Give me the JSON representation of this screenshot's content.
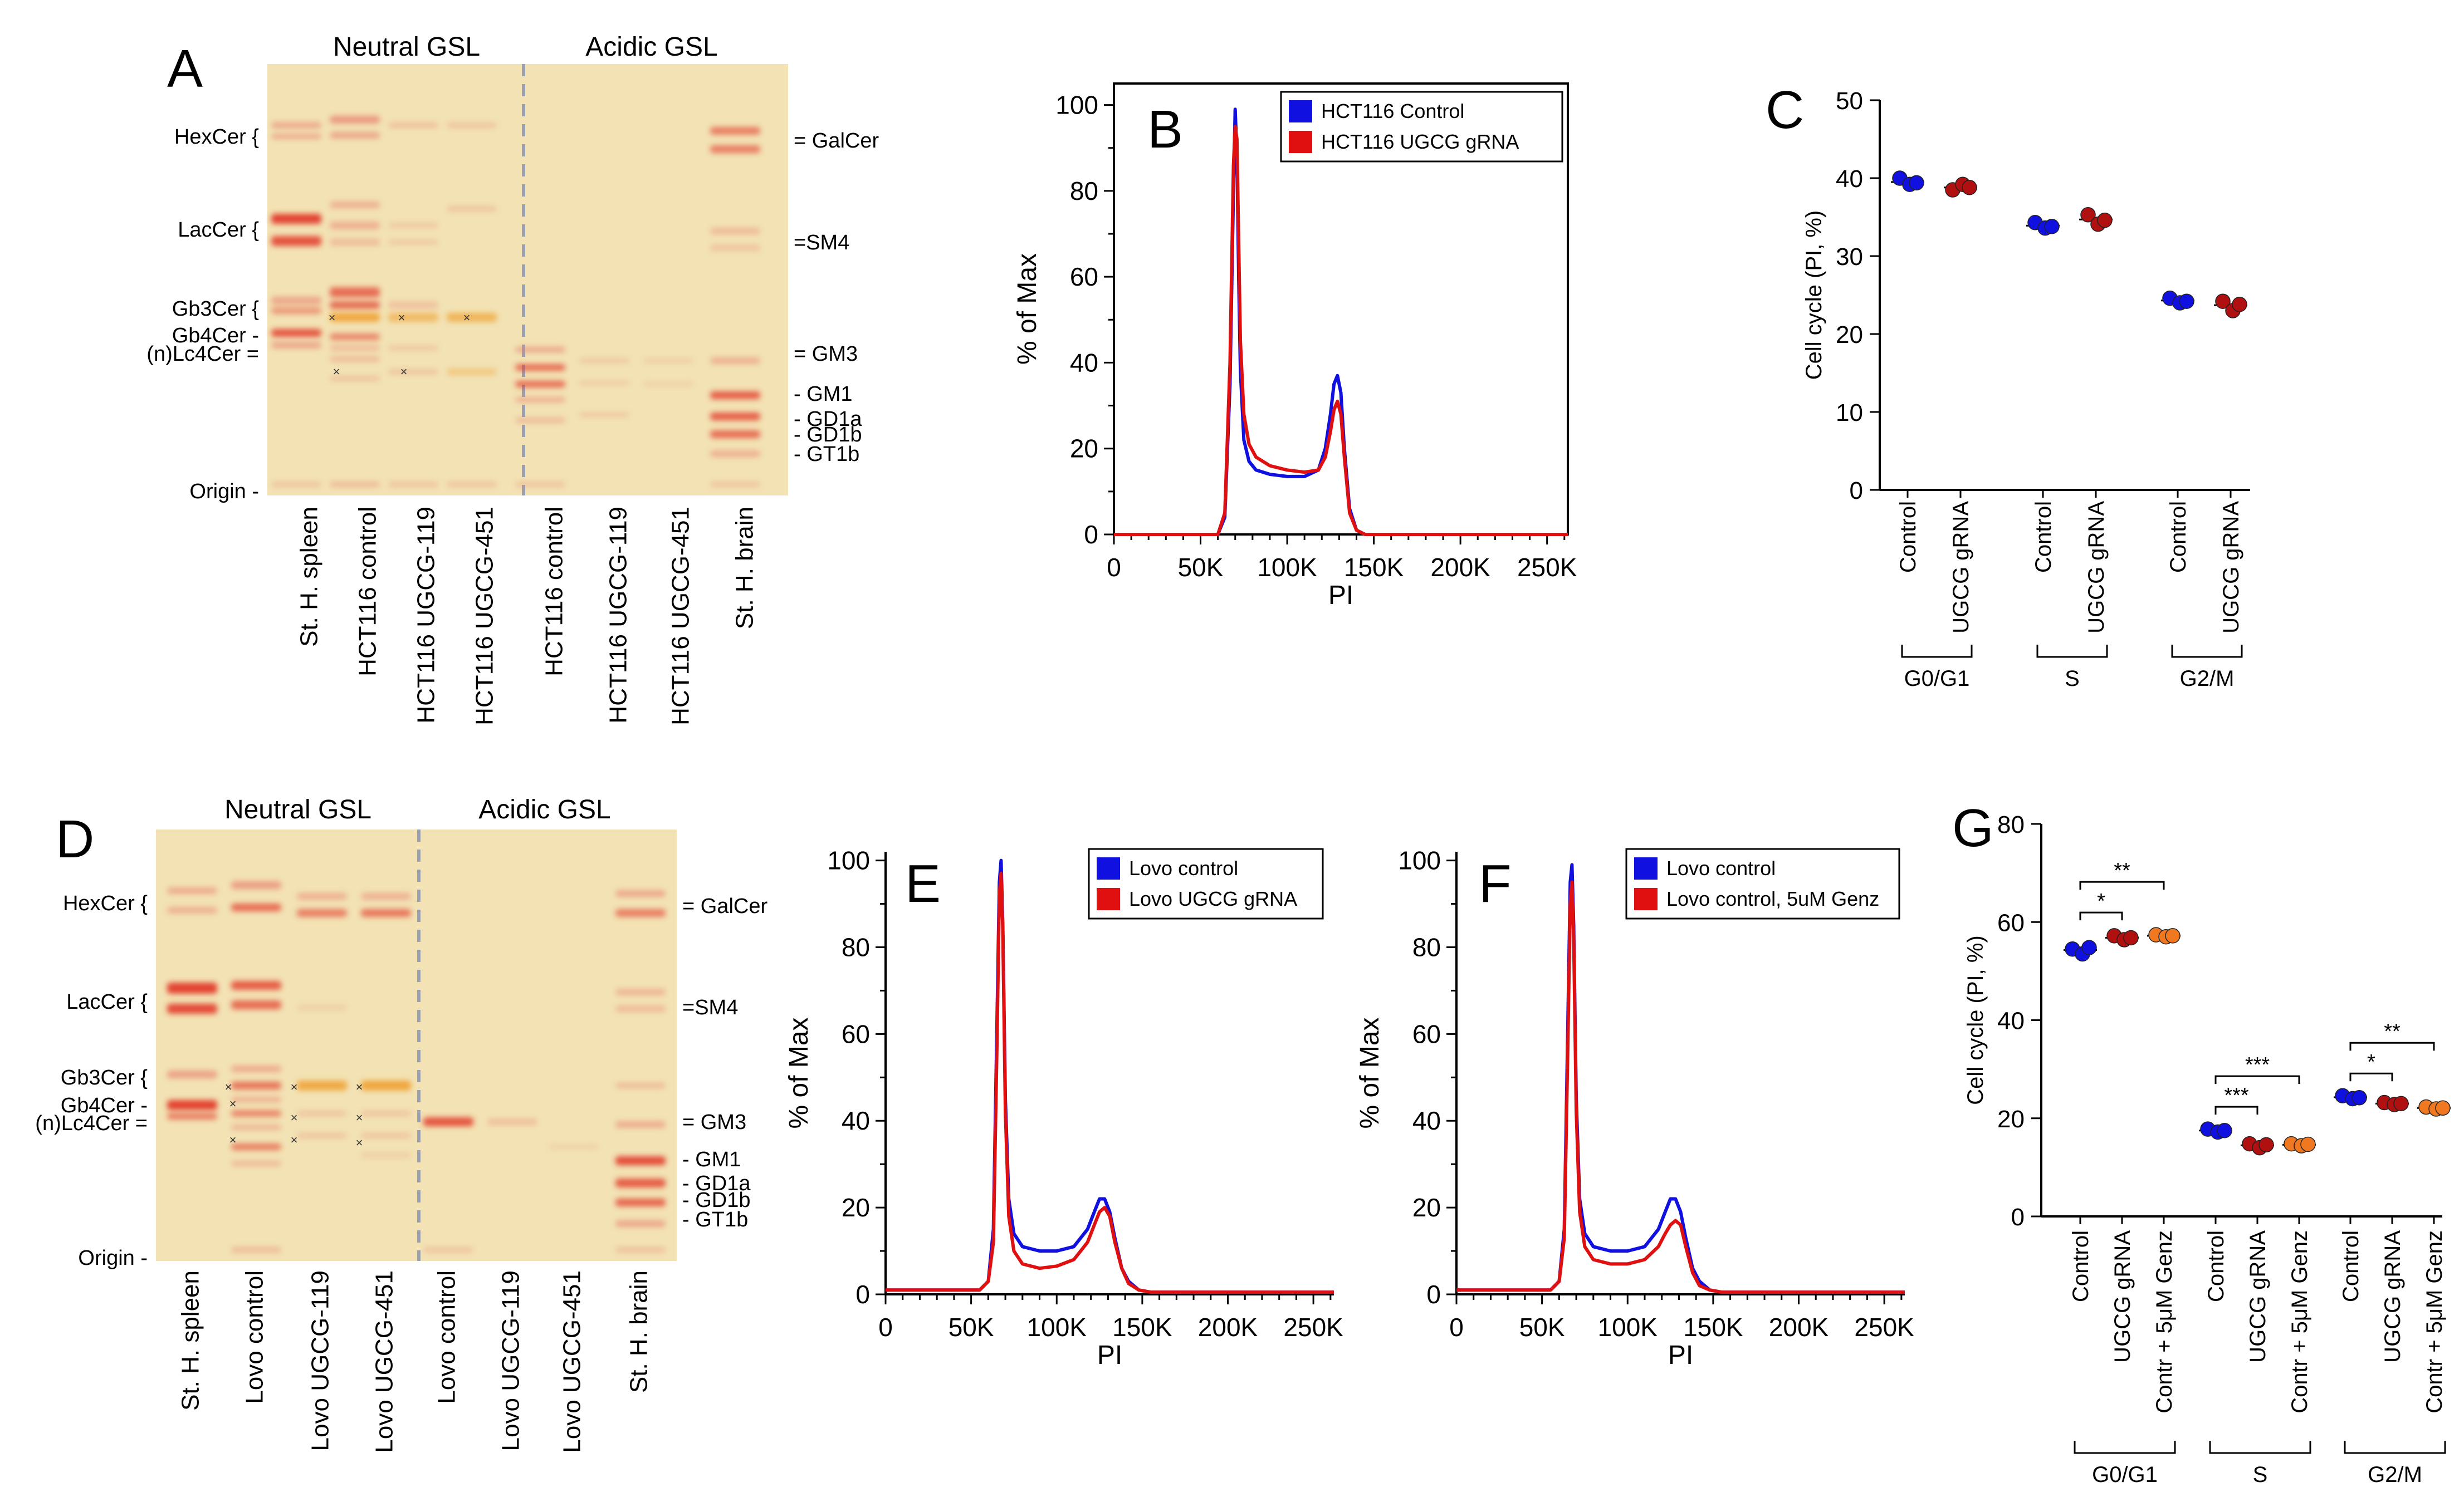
{
  "panelA": {
    "letter": "A",
    "groups": [
      "Neutral GSL",
      "Acidic GSL"
    ],
    "left_labels": [
      {
        "id": "hexcer",
        "text": "HexCer {"
      },
      {
        "id": "lacer",
        "text": "LacCer {"
      },
      {
        "id": "gb3",
        "text": "Gb3Cer {"
      },
      {
        "id": "gb4",
        "text": "Gb4Cer -"
      },
      {
        "id": "lc4",
        "text": "(n)Lc4Cer ="
      },
      {
        "id": "origin",
        "text": "Origin -"
      }
    ],
    "right_labels": [
      {
        "id": "galcer",
        "text": "= GalCer"
      },
      {
        "id": "sm4",
        "text": "=SM4"
      },
      {
        "id": "gm3",
        "text": "= GM3"
      },
      {
        "id": "gm1",
        "text": "- GM1"
      },
      {
        "id": "gd1a",
        "text": "- GD1a"
      },
      {
        "id": "gd1b",
        "text": "- GD1b"
      },
      {
        "id": "gt1b",
        "text": "- GT1b"
      }
    ],
    "lanes": [
      "St. H. spleen",
      "HCT116 control",
      "HCT116 UGCG-119",
      "HCT116 UGCG-451",
      "HCT116 control",
      "HCT116 UGCG-119",
      "HCT116 UGCG-451",
      "St. H. brain"
    ]
  },
  "panelD": {
    "letter": "D",
    "groups": [
      "Neutral GSL",
      "Acidic GSL"
    ],
    "left_labels": [
      {
        "id": "hexcer",
        "text": "HexCer {"
      },
      {
        "id": "lacer",
        "text": "LacCer {"
      },
      {
        "id": "gb3",
        "text": "Gb3Cer {"
      },
      {
        "id": "gb4",
        "text": "Gb4Cer -"
      },
      {
        "id": "lc4",
        "text": "(n)Lc4Cer ="
      },
      {
        "id": "origin",
        "text": "Origin -"
      }
    ],
    "right_labels": [
      {
        "id": "galcer",
        "text": "= GalCer"
      },
      {
        "id": "sm4",
        "text": "=SM4"
      },
      {
        "id": "gm3",
        "text": "= GM3"
      },
      {
        "id": "gm1",
        "text": "- GM1"
      },
      {
        "id": "gd1a",
        "text": "- GD1a"
      },
      {
        "id": "gd1b",
        "text": "- GD1b"
      },
      {
        "id": "gt1b",
        "text": "- GT1b"
      }
    ],
    "lanes": [
      "St. H. spleen",
      "Lovo control",
      "Lovo UGCG-119",
      "Lovo UGCG-451",
      "Lovo control",
      "Lovo UGCG-119",
      "Lovo UGCG-451",
      "St. H. brain"
    ]
  },
  "colors": {
    "blue": "#1010e0",
    "red": "#e01010",
    "dark_red": "#b01010",
    "orange": "#f07820",
    "tlc_bg": "#f2e2b4",
    "band_red": "#e23a2a",
    "band_orange": "#f0a030",
    "band_pink": "#e88070"
  },
  "chart_data": [
    {
      "panel": "B",
      "type": "line",
      "title": "",
      "xlabel": "PI",
      "ylabel": "% of Max",
      "xlim": [
        0,
        262000
      ],
      "ylim": [
        0,
        105
      ],
      "xticks": [
        0,
        50000,
        100000,
        150000,
        200000,
        250000
      ],
      "xtick_labels": [
        "0",
        "50K",
        "100K",
        "150K",
        "200K",
        "250K"
      ],
      "yticks": [
        0,
        20,
        40,
        60,
        80,
        100
      ],
      "ytick_labels": [
        "0",
        "20",
        "40",
        "60",
        "80",
        "100"
      ],
      "legend": "top-right",
      "series": [
        {
          "name": "HCT116  Control",
          "color": "#1010e0",
          "x": [
            0,
            60000,
            64000,
            67000,
            69000,
            70000,
            71000,
            72000,
            73000,
            75000,
            78000,
            82000,
            90000,
            100000,
            110000,
            118000,
            122000,
            125000,
            127000,
            129000,
            131000,
            133000,
            136000,
            140000,
            145000,
            262000
          ],
          "y": [
            0,
            0,
            4,
            35,
            80,
            99,
            88,
            60,
            38,
            22,
            17,
            15,
            14,
            13.5,
            13.5,
            15,
            20,
            28,
            35,
            37,
            33,
            20,
            6,
            1,
            0,
            0
          ]
        },
        {
          "name": "HCT116  UGCG gRNA",
          "color": "#e01010",
          "x": [
            0,
            60000,
            64000,
            67000,
            69000,
            70000,
            71000,
            72000,
            73000,
            75000,
            78000,
            82000,
            90000,
            100000,
            110000,
            118000,
            122000,
            125000,
            127000,
            129000,
            131000,
            133000,
            136000,
            140000,
            145000,
            262000
          ],
          "y": [
            0,
            0,
            5,
            40,
            86,
            95,
            92,
            68,
            45,
            28,
            21,
            18,
            16,
            15,
            14.5,
            15,
            18,
            24,
            29,
            31,
            28,
            18,
            5,
            1,
            0,
            0
          ]
        }
      ]
    },
    {
      "panel": "C",
      "type": "scatter",
      "ylabel": "Cell cycle (PI, %)",
      "ylim": [
        0,
        50
      ],
      "yticks": [
        0,
        10,
        20,
        30,
        40,
        50
      ],
      "ytick_labels": [
        "0",
        "10",
        "20",
        "30",
        "40",
        "50"
      ],
      "categories": [
        "Control",
        "UGCG gRNA",
        "Control",
        "UGCG gRNA",
        "Control",
        "UGCG gRNA"
      ],
      "groups": [
        "G0/G1",
        "S",
        "G2/M"
      ],
      "series": [
        {
          "name": "Control",
          "color": "#1010e0",
          "points": [
            [
              40,
              39.2,
              39.4
            ],
            [
              34.3,
              33.6,
              33.8
            ],
            [
              24.6,
              24,
              24.2
            ]
          ],
          "means": [
            39.5,
            33.9,
            24.3
          ]
        },
        {
          "name": "UGCG gRNA",
          "color": "#b01010",
          "points": [
            [
              38.5,
              39.2,
              38.8
            ],
            [
              35.3,
              34.1,
              34.6
            ],
            [
              24.2,
              23,
              23.8
            ]
          ],
          "means": [
            38.8,
            34.7,
            23.7
          ]
        }
      ]
    },
    {
      "panel": "E",
      "type": "line",
      "xlabel": "PI",
      "ylabel": "% of Max",
      "xlim": [
        0,
        262000
      ],
      "ylim": [
        0,
        102
      ],
      "xticks": [
        0,
        50000,
        100000,
        150000,
        200000,
        250000
      ],
      "xtick_labels": [
        "0",
        "50K",
        "100K",
        "150K",
        "200K",
        "250K"
      ],
      "yticks": [
        0,
        20,
        40,
        60,
        80,
        100
      ],
      "ytick_labels": [
        "0",
        "20",
        "40",
        "60",
        "80",
        "100"
      ],
      "legend": "top-right",
      "series": [
        {
          "name": "Lovo control",
          "color": "#1010e0",
          "x": [
            0,
            55000,
            60000,
            63000,
            65000,
            66500,
            67500,
            68500,
            70000,
            72000,
            75000,
            80000,
            90000,
            100000,
            110000,
            118000,
            122000,
            125000,
            128000,
            131000,
            134000,
            138000,
            142000,
            148000,
            155000,
            262000
          ],
          "y": [
            1,
            1,
            3,
            15,
            60,
            95,
            100,
            85,
            45,
            22,
            14,
            11,
            10,
            10,
            11,
            15,
            19,
            22,
            22,
            19,
            13,
            6,
            3,
            1,
            0.5,
            0.5
          ]
        },
        {
          "name": "Lovo UGCG gRNA",
          "color": "#e01010",
          "x": [
            0,
            55000,
            60000,
            63000,
            65000,
            66500,
            67500,
            68500,
            70000,
            72000,
            75000,
            80000,
            90000,
            100000,
            110000,
            118000,
            122000,
            125000,
            128000,
            131000,
            134000,
            138000,
            142000,
            148000,
            155000,
            262000
          ],
          "y": [
            1,
            1,
            3,
            12,
            55,
            92,
            97,
            84,
            42,
            18,
            10,
            7,
            6,
            6.5,
            8,
            12,
            16,
            19,
            20,
            18,
            12,
            6,
            2.5,
            1,
            0.5,
            0.5
          ]
        }
      ]
    },
    {
      "panel": "F",
      "type": "line",
      "xlabel": "PI",
      "ylabel": "% of Max",
      "xlim": [
        0,
        262000
      ],
      "ylim": [
        0,
        102
      ],
      "xticks": [
        0,
        50000,
        100000,
        150000,
        200000,
        250000
      ],
      "xtick_labels": [
        "0",
        "50K",
        "100K",
        "150K",
        "200K",
        "250K"
      ],
      "yticks": [
        0,
        20,
        40,
        60,
        80,
        100
      ],
      "ytick_labels": [
        "0",
        "20",
        "40",
        "60",
        "80",
        "100"
      ],
      "legend": "top-right",
      "series": [
        {
          "name": "Lovo control",
          "color": "#1010e0",
          "x": [
            0,
            55000,
            60000,
            63000,
            65000,
            66500,
            67500,
            68500,
            70000,
            72000,
            75000,
            80000,
            90000,
            100000,
            110000,
            118000,
            122000,
            125000,
            128000,
            131000,
            134000,
            138000,
            142000,
            148000,
            155000,
            262000
          ],
          "y": [
            1,
            1,
            3,
            15,
            60,
            95,
            99,
            85,
            45,
            22,
            14,
            11,
            10,
            10,
            11,
            15,
            19,
            22,
            22,
            19,
            13,
            6,
            3,
            1,
            0.5,
            0.5
          ]
        },
        {
          "name": "Lovo control, 5uM Genz",
          "color": "#e01010",
          "x": [
            0,
            55000,
            60000,
            63000,
            65000,
            66500,
            67500,
            68500,
            70000,
            72000,
            75000,
            80000,
            90000,
            100000,
            110000,
            118000,
            122000,
            125000,
            128000,
            131000,
            134000,
            138000,
            142000,
            148000,
            155000,
            262000
          ],
          "y": [
            1,
            1,
            3,
            13,
            55,
            90,
            95,
            82,
            42,
            19,
            11,
            8,
            7,
            7,
            8,
            11,
            14,
            16,
            17,
            16,
            11,
            5,
            2,
            1,
            0.5,
            0.5
          ]
        }
      ]
    },
    {
      "panel": "G",
      "type": "scatter",
      "ylabel": "Cell cycle (PI, %)",
      "ylim": [
        0,
        80
      ],
      "yticks": [
        0,
        20,
        40,
        60,
        80
      ],
      "ytick_labels": [
        "0",
        "20",
        "40",
        "60",
        "80"
      ],
      "categories": [
        "Control",
        "UGCG gRNA",
        "Contr + 5μM Genz"
      ],
      "groups": [
        "G0/G1",
        "S",
        "G2/M"
      ],
      "series": [
        {
          "name": "Control",
          "color": "#1010e0",
          "points": [
            [
              54.5,
              53.5,
              54.8
            ],
            [
              17.8,
              17.2,
              17.5
            ],
            [
              24.6,
              24,
              24.2
            ]
          ],
          "means": [
            54.3,
            17.5,
            24.3
          ]
        },
        {
          "name": "UGCG gRNA",
          "color": "#b01010",
          "points": [
            [
              57.2,
              56.4,
              56.8
            ],
            [
              14.8,
              14,
              14.6
            ],
            [
              23.2,
              22.8,
              23
            ]
          ],
          "means": [
            56.8,
            14.5,
            23
          ]
        },
        {
          "name": "Contr + 5μM Genz",
          "color": "#f07820",
          "points": [
            [
              57.4,
              57,
              57.2
            ],
            [
              14.8,
              14.4,
              14.7
            ],
            [
              22.3,
              21.9,
              22.1
            ]
          ],
          "means": [
            57.2,
            14.6,
            22.1
          ]
        }
      ],
      "significance": [
        {
          "group": "G0/G1",
          "label": "*",
          "from": 0,
          "to": 1,
          "tier": 0
        },
        {
          "group": "G0/G1",
          "label": "**",
          "from": 0,
          "to": 2,
          "tier": 1
        },
        {
          "group": "S",
          "label": "***",
          "from": 0,
          "to": 1,
          "tier": 0
        },
        {
          "group": "S",
          "label": "***",
          "from": 0,
          "to": 2,
          "tier": 1
        },
        {
          "group": "G2/M",
          "label": "*",
          "from": 0,
          "to": 1,
          "tier": 0
        },
        {
          "group": "G2/M",
          "label": "**",
          "from": 0,
          "to": 2,
          "tier": 1
        }
      ]
    }
  ]
}
